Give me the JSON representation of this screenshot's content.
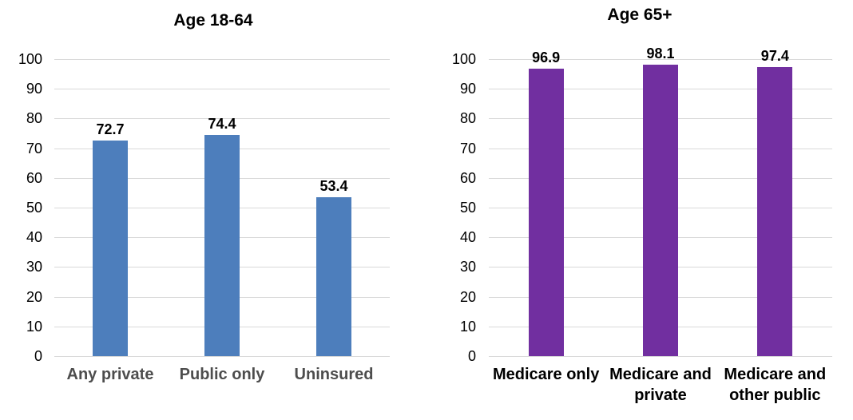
{
  "chart_data": [
    {
      "type": "bar",
      "title": "Age 18-64",
      "categories": [
        "Any private",
        "Public only",
        "Uninsured"
      ],
      "values": [
        72.7,
        74.4,
        53.4
      ],
      "value_labels": [
        "72.7",
        "74.4",
        "53.4"
      ],
      "ylim": [
        0,
        100
      ],
      "ytick_step": 10,
      "ytick_labels": [
        "0",
        "10",
        "20",
        "30",
        "40",
        "50",
        "60",
        "70",
        "80",
        "90",
        "100"
      ],
      "grid": "horizontal",
      "legend": "none",
      "xlabel": "",
      "ylabel": "",
      "colors": {
        "bar": "#4d7ebc",
        "category_label": "#4d4d4d",
        "value_label": "#000000",
        "tick_label": "#000000",
        "gridline": "#d9d9d9"
      }
    },
    {
      "type": "bar",
      "title": "Age 65+",
      "categories": [
        "Medicare only",
        "Medicare and private",
        "Medicare and other public"
      ],
      "values": [
        96.9,
        98.1,
        97.4
      ],
      "value_labels": [
        "96.9",
        "98.1",
        "97.4"
      ],
      "ylim": [
        0,
        100
      ],
      "ytick_step": 10,
      "ytick_labels": [
        "0",
        "10",
        "20",
        "30",
        "40",
        "50",
        "60",
        "70",
        "80",
        "90",
        "100"
      ],
      "grid": "horizontal",
      "legend": "none",
      "xlabel": "",
      "ylabel": "",
      "colors": {
        "bar": "#712fa0",
        "category_label": "#000000",
        "value_label": "#000000",
        "tick_label": "#000000",
        "gridline": "#d9d9d9"
      }
    }
  ]
}
